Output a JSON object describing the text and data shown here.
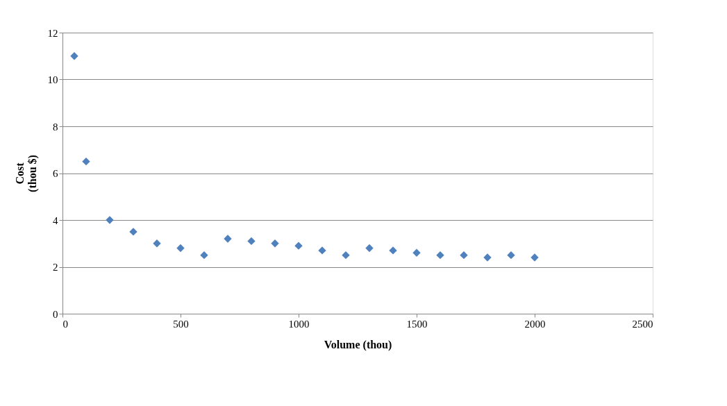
{
  "chart_data": {
    "type": "scatter",
    "xlabel": "Volume (thou)",
    "ylabel": "Cost\n(thou $)",
    "x": [
      50,
      100,
      200,
      300,
      400,
      500,
      600,
      700,
      800,
      900,
      1000,
      1100,
      1200,
      1300,
      1400,
      1500,
      1600,
      1700,
      1800,
      1900,
      2000
    ],
    "series": [
      {
        "color": "#4f81bd",
        "values": [
          11.0,
          6.5,
          4.0,
          3.5,
          3.0,
          2.8,
          2.5,
          3.2,
          3.1,
          3.0,
          2.9,
          2.7,
          2.5,
          2.8,
          2.7,
          2.6,
          2.5,
          2.5,
          2.4,
          2.5,
          2.4
        ]
      }
    ],
    "xlim": [
      0,
      2500
    ],
    "xticks": [
      0,
      500,
      1000,
      1500,
      2000,
      2500
    ],
    "ylim": [
      0,
      12
    ],
    "yticks": [
      0,
      2,
      4,
      6,
      8,
      10,
      12
    ],
    "grid": "y",
    "marker": "diamond"
  }
}
